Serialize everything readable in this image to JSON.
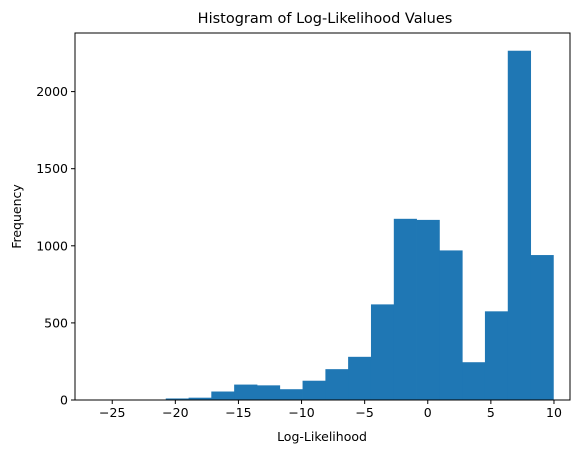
{
  "chart_data": {
    "type": "bar",
    "title": "Histogram of Log-Likelihood Values",
    "xlabel": "Log-Likelihood",
    "ylabel": "Frequency",
    "xlim": [
      -27.95,
      11.27
    ],
    "ylim": [
      0,
      2380
    ],
    "grid": false,
    "bar_color": "#1f77b4",
    "x_ticks": [
      {
        "value": -25,
        "label": "−25"
      },
      {
        "value": -20,
        "label": "−20"
      },
      {
        "value": -15,
        "label": "−15"
      },
      {
        "value": -10,
        "label": "−10"
      },
      {
        "value": -5,
        "label": "−5"
      },
      {
        "value": 0,
        "label": "0"
      },
      {
        "value": 5,
        "label": "5"
      },
      {
        "value": 10,
        "label": "10"
      }
    ],
    "y_ticks": [
      {
        "value": 0,
        "label": "0"
      },
      {
        "value": 500,
        "label": "500"
      },
      {
        "value": 1000,
        "label": "1000"
      },
      {
        "value": 1500,
        "label": "1500"
      },
      {
        "value": 2000,
        "label": "2000"
      }
    ],
    "bins": [
      {
        "x0": -26.18,
        "x1": -24.37,
        "count": 3
      },
      {
        "x0": -24.37,
        "x1": -22.57,
        "count": 0
      },
      {
        "x0": -22.57,
        "x1": -20.76,
        "count": 3
      },
      {
        "x0": -20.76,
        "x1": -18.95,
        "count": 10
      },
      {
        "x0": -18.95,
        "x1": -17.15,
        "count": 15
      },
      {
        "x0": -17.15,
        "x1": -15.34,
        "count": 55
      },
      {
        "x0": -15.34,
        "x1": -13.53,
        "count": 100
      },
      {
        "x0": -13.53,
        "x1": -11.73,
        "count": 95
      },
      {
        "x0": -11.73,
        "x1": -9.92,
        "count": 70
      },
      {
        "x0": -9.92,
        "x1": -8.11,
        "count": 125
      },
      {
        "x0": -8.11,
        "x1": -6.31,
        "count": 200
      },
      {
        "x0": -6.31,
        "x1": -4.5,
        "count": 280
      },
      {
        "x0": -4.5,
        "x1": -2.69,
        "count": 620
      },
      {
        "x0": -2.69,
        "x1": -0.89,
        "count": 1175
      },
      {
        "x0": -0.89,
        "x1": 0.92,
        "count": 1168
      },
      {
        "x0": 0.92,
        "x1": 2.73,
        "count": 970
      },
      {
        "x0": 2.73,
        "x1": 4.53,
        "count": 245
      },
      {
        "x0": 4.53,
        "x1": 6.34,
        "count": 575
      },
      {
        "x0": 6.34,
        "x1": 8.15,
        "count": 2265
      },
      {
        "x0": 8.15,
        "x1": 9.95,
        "count": 940
      }
    ]
  }
}
